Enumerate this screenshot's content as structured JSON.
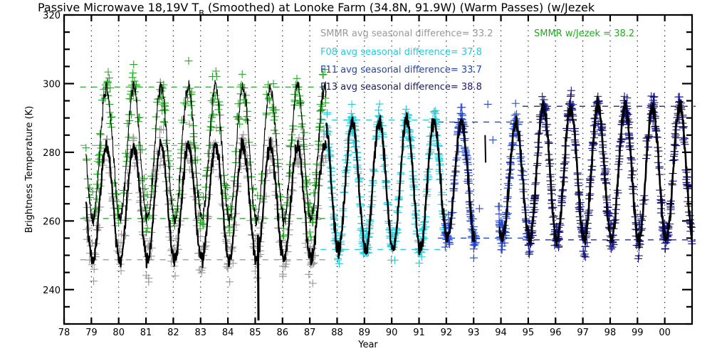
{
  "chart_data": {
    "type": "scatter",
    "title": "Passive Microwave 18,19V T",
    "title_sub": "B",
    "title_rest": " (Smoothed) at Lonoke Farm (34.8N, 91.9W) (Warm Passes) (w/Jezek",
    "xlabel": "Year",
    "ylabel": "Brightness Temperature (K)",
    "xlim": [
      78,
      101
    ],
    "ylim": [
      230,
      320
    ],
    "x_ticks": [
      78,
      79,
      80,
      81,
      82,
      83,
      84,
      85,
      86,
      87,
      88,
      89,
      90,
      91,
      92,
      93,
      94,
      95,
      96,
      97,
      98,
      99,
      100
    ],
    "x_tick_labels": [
      "78",
      "79",
      "80",
      "81",
      "82",
      "83",
      "84",
      "85",
      "86",
      "87",
      "88",
      "89",
      "90",
      "91",
      "92",
      "93",
      "94",
      "95",
      "96",
      "97",
      "98",
      "99",
      "00"
    ],
    "y_ticks": [
      240,
      260,
      280,
      300,
      320
    ],
    "y_tick_labels": [
      "240",
      "260",
      "280",
      "300",
      "320"
    ],
    "grid": "vertical-dotted",
    "annotations": [
      {
        "text": "SMMR avg seasonal difference=  33.2",
        "color": "#999999"
      },
      {
        "text": "SMMR w/Jezek =  38.2",
        "color": "#22aa22"
      },
      {
        "text": "F08 avg seasonal difference=  37.8",
        "color": "#22ccdd"
      },
      {
        "text": "F11 avg seasonal difference=  33.7",
        "color": "#2244aa"
      },
      {
        "text": "F13 avg seasonal difference=  38.8",
        "color": "#1a1a66"
      }
    ],
    "series": [
      {
        "name": "SMMR",
        "color": "#999999",
        "x_range": [
          78.8,
          87.6
        ],
        "mean": 265.3,
        "amplitude": 16.6,
        "phase_peak": 0.55,
        "ref_lines": [
          282.0,
          248.7
        ]
      },
      {
        "name": "SMMR w/Jezek",
        "color": "#22aa22",
        "x_range": [
          78.8,
          87.6
        ],
        "mean": 279.8,
        "amplitude": 19.1,
        "phase_peak": 0.55,
        "ref_lines": [
          299.0,
          260.7
        ]
      },
      {
        "name": "F08",
        "color": "#22ccdd",
        "x_range": [
          87.6,
          91.9
        ],
        "mean": 270.5,
        "amplitude": 18.9,
        "phase_peak": 0.55,
        "ref_lines": [
          289.4,
          251.7
        ]
      },
      {
        "name": "F11",
        "color": "#2244cc",
        "x_range": [
          91.9,
          95.0
        ],
        "mean": 271.9,
        "amplitude": 16.9,
        "phase_peak": 0.55,
        "ref_lines": [
          288.8,
          255.0
        ]
      },
      {
        "name": "F13",
        "color": "#101080",
        "x_range": [
          95.0,
          101.0
        ],
        "mean": 273.9,
        "amplitude": 19.4,
        "phase_peak": 0.55,
        "ref_lines": [
          293.4,
          254.5
        ]
      },
      {
        "name": "Smoothed",
        "color": "#000000",
        "x_range": [
          78.8,
          101.0
        ]
      }
    ]
  }
}
